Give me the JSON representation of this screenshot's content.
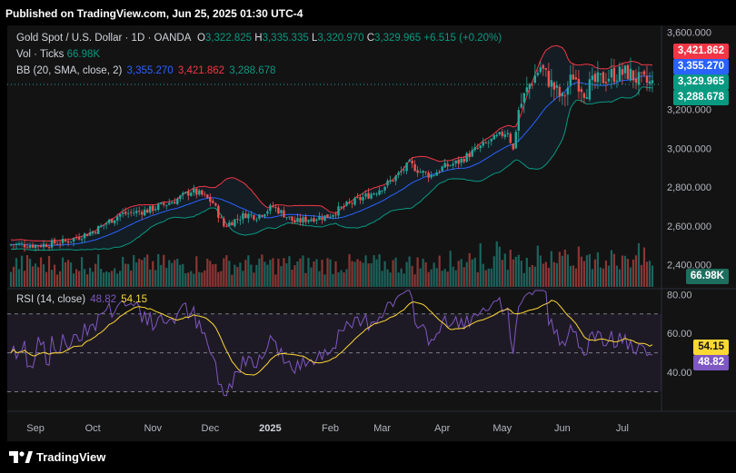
{
  "header": {
    "published": "Published on TradingView.com, Jun 25, 2025 01:30 UTC-4"
  },
  "legend": {
    "symbol": "Gold Spot / U.S. Dollar · 1D · OANDA",
    "o_label": "O",
    "o_value": "3,322.825",
    "h_label": "H",
    "h_value": "3,335.335",
    "l_label": "L",
    "l_value": "3,320.970",
    "c_label": "C",
    "c_value": "3,329.965",
    "change": "+6.515 (+0.20%)",
    "vol_label": "Vol · Ticks",
    "vol_value": "66.98K",
    "bb_label": "BB (20, SMA, close, 2)",
    "bb_basis": "3,355.270",
    "bb_upper": "3,421.862",
    "bb_lower": "3,288.678",
    "rsi_label": "RSI (14, close)",
    "rsi_value": "48.82",
    "rsi_ma": "54.15"
  },
  "price_axis": {
    "ticks": [
      "3,600.000",
      "3,200.000",
      "3,000.000",
      "2,800.000",
      "2,600.000",
      "2,400.000"
    ],
    "badges": {
      "upper": "3,421.862",
      "basis": "3,355.270",
      "close": "3,329.965",
      "lower": "3,288.678",
      "volume": "66.98K"
    }
  },
  "rsi_axis": {
    "ticks": [
      "80.00",
      "60.00",
      "40.00"
    ],
    "badges": {
      "ma": "54.15",
      "rsi": "48.82"
    }
  },
  "time_axis": [
    "Sep",
    "Oct",
    "Nov",
    "Dec",
    "2025",
    "Feb",
    "Mar",
    "Apr",
    "May",
    "Jun",
    "Jul"
  ],
  "footer": {
    "brand": "TradingView"
  },
  "colors": {
    "up": "#26a69a",
    "down": "#ef5350",
    "bb_upper": "#f23645",
    "bb_basis": "#2962ff",
    "bb_lower": "#089981",
    "rsi": "#7e57c2",
    "rsi_ma": "#fdd835",
    "background": "#131313"
  },
  "chart_data": {
    "type": "candlestick",
    "price_range": [
      2300,
      3620
    ],
    "rsi_range": [
      20,
      82
    ],
    "rsi_bands": [
      70,
      50,
      30
    ],
    "start_date": "2024-08-20",
    "date_labels": [
      "Sep",
      "Oct",
      "Nov",
      "Dec",
      "2025",
      "Feb",
      "Mar",
      "Apr",
      "May",
      "Jun",
      "Jul"
    ],
    "close_anchors": [
      [
        0,
        2505
      ],
      [
        10,
        2500
      ],
      [
        20,
        2520
      ],
      [
        30,
        2570
      ],
      [
        40,
        2660
      ],
      [
        50,
        2680
      ],
      [
        60,
        2730
      ],
      [
        66,
        2780
      ],
      [
        70,
        2760
      ],
      [
        74,
        2720
      ],
      [
        78,
        2600
      ],
      [
        82,
        2630
      ],
      [
        86,
        2660
      ],
      [
        90,
        2650
      ],
      [
        96,
        2700
      ],
      [
        100,
        2660
      ],
      [
        104,
        2620
      ],
      [
        110,
        2640
      ],
      [
        116,
        2650
      ],
      [
        122,
        2700
      ],
      [
        128,
        2740
      ],
      [
        134,
        2780
      ],
      [
        140,
        2840
      ],
      [
        146,
        2920
      ],
      [
        150,
        2880
      ],
      [
        154,
        2860
      ],
      [
        158,
        2900
      ],
      [
        164,
        2930
      ],
      [
        170,
        2990
      ],
      [
        176,
        3040
      ],
      [
        182,
        3090
      ],
      [
        184,
        2990
      ],
      [
        186,
        3200
      ],
      [
        190,
        3330
      ],
      [
        194,
        3420
      ],
      [
        198,
        3330
      ],
      [
        202,
        3250
      ],
      [
        206,
        3380
      ],
      [
        210,
        3300
      ],
      [
        214,
        3340
      ],
      [
        220,
        3380
      ],
      [
        226,
        3390
      ],
      [
        230,
        3350
      ],
      [
        235,
        3330
      ]
    ],
    "volume_range": [
      0,
      35000
    ],
    "last": {
      "close": 3329.965,
      "bb_upper": 3421.862,
      "bb_basis": 3355.27,
      "bb_lower": 3288.678,
      "volume": 66980,
      "rsi": 48.82,
      "rsi_ma": 54.15
    }
  }
}
